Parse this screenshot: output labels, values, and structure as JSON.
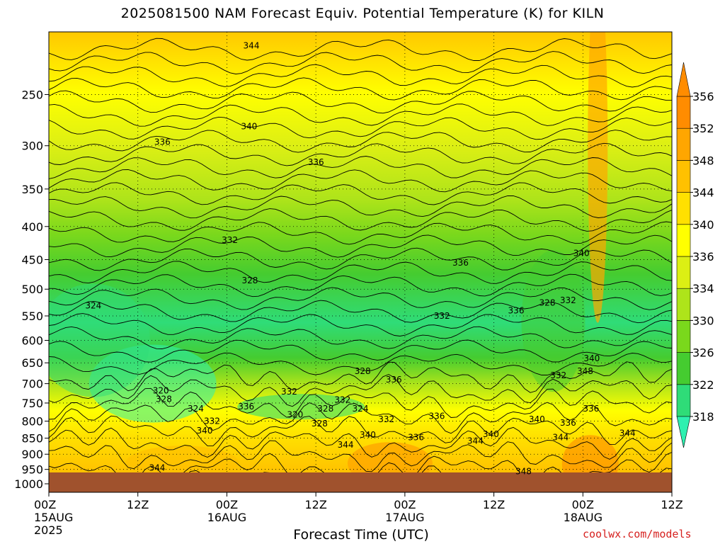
{
  "title": "2025081500 NAM Forecast Equiv. Potential Temperature (K) for KILN",
  "xlabel": "Forecast Time (UTC)",
  "credit": "coolwx.com/models",
  "chart_data": {
    "type": "heatmap",
    "title": "2025081500 NAM Forecast Equiv. Potential Temperature (K) for KILN",
    "xlabel": "Forecast Time (UTC)",
    "ylabel": "",
    "x_ticks": [
      {
        "h": 0,
        "lines": [
          "00Z",
          "15AUG",
          "2025"
        ]
      },
      {
        "h": 12,
        "lines": [
          "12Z"
        ]
      },
      {
        "h": 24,
        "lines": [
          "00Z",
          "16AUG"
        ]
      },
      {
        "h": 36,
        "lines": [
          "12Z"
        ]
      },
      {
        "h": 48,
        "lines": [
          "00Z",
          "17AUG"
        ]
      },
      {
        "h": 60,
        "lines": [
          "12Z"
        ]
      },
      {
        "h": 72,
        "lines": [
          "00Z",
          "18AUG"
        ]
      },
      {
        "h": 84,
        "lines": [
          "12Z"
        ]
      }
    ],
    "xlim": [
      0,
      84
    ],
    "y_ticks": [
      250,
      300,
      350,
      400,
      450,
      500,
      550,
      600,
      650,
      700,
      750,
      800,
      850,
      900,
      950,
      1000
    ],
    "ylim": [
      1000,
      200
    ],
    "y_scale": "log-pressure",
    "colorbar": {
      "levels": [
        318,
        322,
        326,
        330,
        334,
        336,
        340,
        344,
        348,
        352,
        356
      ],
      "colors": [
        "#2ef0b0",
        "#2fdc78",
        "#45cc30",
        "#7ad81c",
        "#aee41a",
        "#dcef14",
        "#ffff00",
        "#ffe000",
        "#ffc100",
        "#ffa600",
        "#ff8c00"
      ]
    },
    "contour_labels": [
      {
        "t": 344,
        "h": 27.3,
        "p": 210
      },
      {
        "t": 340,
        "h": 27.0,
        "p": 280
      },
      {
        "t": 336,
        "h": 15.3,
        "p": 296
      },
      {
        "t": 336,
        "h": 36.0,
        "p": 318
      },
      {
        "t": 332,
        "h": 24.4,
        "p": 420
      },
      {
        "t": 328,
        "h": 27.1,
        "p": 485
      },
      {
        "t": 324,
        "h": 6.0,
        "p": 530
      },
      {
        "t": 336,
        "h": 55.5,
        "p": 455
      },
      {
        "t": 332,
        "h": 53.0,
        "p": 550
      },
      {
        "t": 340,
        "h": 71.8,
        "p": 440
      },
      {
        "t": 336,
        "h": 63.0,
        "p": 540
      },
      {
        "t": 328,
        "h": 67.2,
        "p": 525
      },
      {
        "t": 332,
        "h": 70.0,
        "p": 520
      },
      {
        "t": 328,
        "h": 42.3,
        "p": 670
      },
      {
        "t": 336,
        "h": 46.5,
        "p": 690
      },
      {
        "t": 332,
        "h": 32.4,
        "p": 720
      },
      {
        "t": 320,
        "h": 15.1,
        "p": 718
      },
      {
        "t": 328,
        "h": 15.5,
        "p": 740
      },
      {
        "t": 324,
        "h": 19.8,
        "p": 765
      },
      {
        "t": 336,
        "h": 26.6,
        "p": 760
      },
      {
        "t": 320,
        "h": 33.2,
        "p": 782
      },
      {
        "t": 328,
        "h": 37.3,
        "p": 765
      },
      {
        "t": 324,
        "h": 42.0,
        "p": 765
      },
      {
        "t": 332,
        "h": 39.6,
        "p": 742
      },
      {
        "t": 328,
        "h": 36.5,
        "p": 807
      },
      {
        "t": 332,
        "h": 22.0,
        "p": 800
      },
      {
        "t": 332,
        "h": 45.5,
        "p": 795
      },
      {
        "t": 336,
        "h": 52.3,
        "p": 786
      },
      {
        "t": 340,
        "h": 21.0,
        "p": 828
      },
      {
        "t": 340,
        "h": 43.0,
        "p": 840
      },
      {
        "t": 336,
        "h": 49.5,
        "p": 848
      },
      {
        "t": 344,
        "h": 40.0,
        "p": 870
      },
      {
        "t": 344,
        "h": 57.5,
        "p": 858
      },
      {
        "t": 340,
        "h": 59.6,
        "p": 838
      },
      {
        "t": 332,
        "h": 68.7,
        "p": 680
      },
      {
        "t": 348,
        "h": 72.3,
        "p": 670
      },
      {
        "t": 340,
        "h": 73.2,
        "p": 640
      },
      {
        "t": 336,
        "h": 73.1,
        "p": 765
      },
      {
        "t": 336,
        "h": 70.0,
        "p": 805
      },
      {
        "t": 340,
        "h": 65.8,
        "p": 795
      },
      {
        "t": 344,
        "h": 69.0,
        "p": 848
      },
      {
        "t": 344,
        "h": 78.0,
        "p": 835
      },
      {
        "t": 348,
        "h": 64.0,
        "p": 957
      },
      {
        "t": 344,
        "h": 14.6,
        "p": 945
      }
    ]
  }
}
